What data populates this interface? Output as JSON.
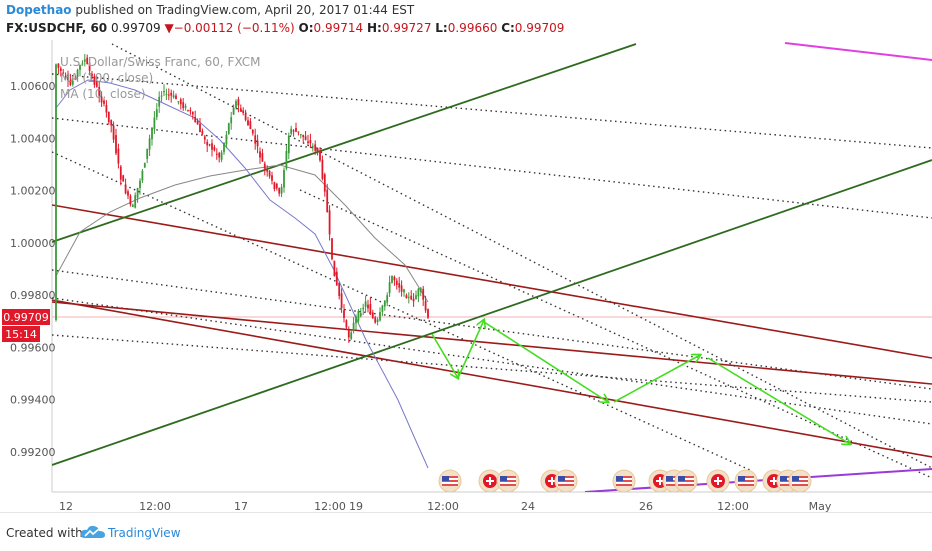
{
  "header": {
    "author": "Dopethao",
    "published_text": "published on TradingView.com, April 20, 2017 01:44 EST"
  },
  "ohlc": {
    "symbol": "FX:USDCHF, 60",
    "last": "0.99709",
    "change_arrow": "▼",
    "change": "−0.00112 (−0.11%)",
    "o_label": "O:",
    "o": "0.99714",
    "h_label": "H:",
    "h": "0.99727",
    "l_label": "L:",
    "l": "0.99660",
    "c_label": "C:",
    "c": "0.99709"
  },
  "overlay": {
    "title": "U.S. Dollar/Swiss Franc, 60, FXCM",
    "ma1": "MA (100, close)",
    "ma2": "MA (10, close)"
  },
  "price_badge": {
    "price": "0.99709",
    "countdown": "15:14"
  },
  "footer": {
    "created_with": "Created with",
    "brand": "TradingView"
  },
  "colors": {
    "up_candle": "#3a9a3a",
    "down_candle": "#e0182a",
    "channel_red": "#9b1b1b",
    "trend_green": "#2e6b1e",
    "forecast_arrows": "#44dd22",
    "ma_blue": "#7878cc",
    "ma_gray": "#888888",
    "magenta_line": "#e040e0",
    "purple_line": "#9a3ad8",
    "price_line": "#e8aaaa"
  },
  "chart_data": {
    "type": "candlestick",
    "y_axis": {
      "range": [
        0.9908,
        1.0076
      ],
      "ticks": [
        "1.00600",
        "1.00400",
        "1.00200",
        "1.00000",
        "0.99800",
        "0.99600",
        "0.99400",
        "0.99200"
      ],
      "tick_values": [
        1.006,
        1.004,
        1.002,
        1.0,
        0.998,
        0.996,
        0.994,
        0.992
      ]
    },
    "x_axis": {
      "ticks": [
        "12",
        "12:00",
        "17",
        "12:00",
        "19",
        "12:00",
        "24",
        "26",
        "12:00",
        "May"
      ]
    },
    "current_price": 0.99709,
    "events": "economic calendar flags (US and CH) along the bottom of the price area"
  }
}
